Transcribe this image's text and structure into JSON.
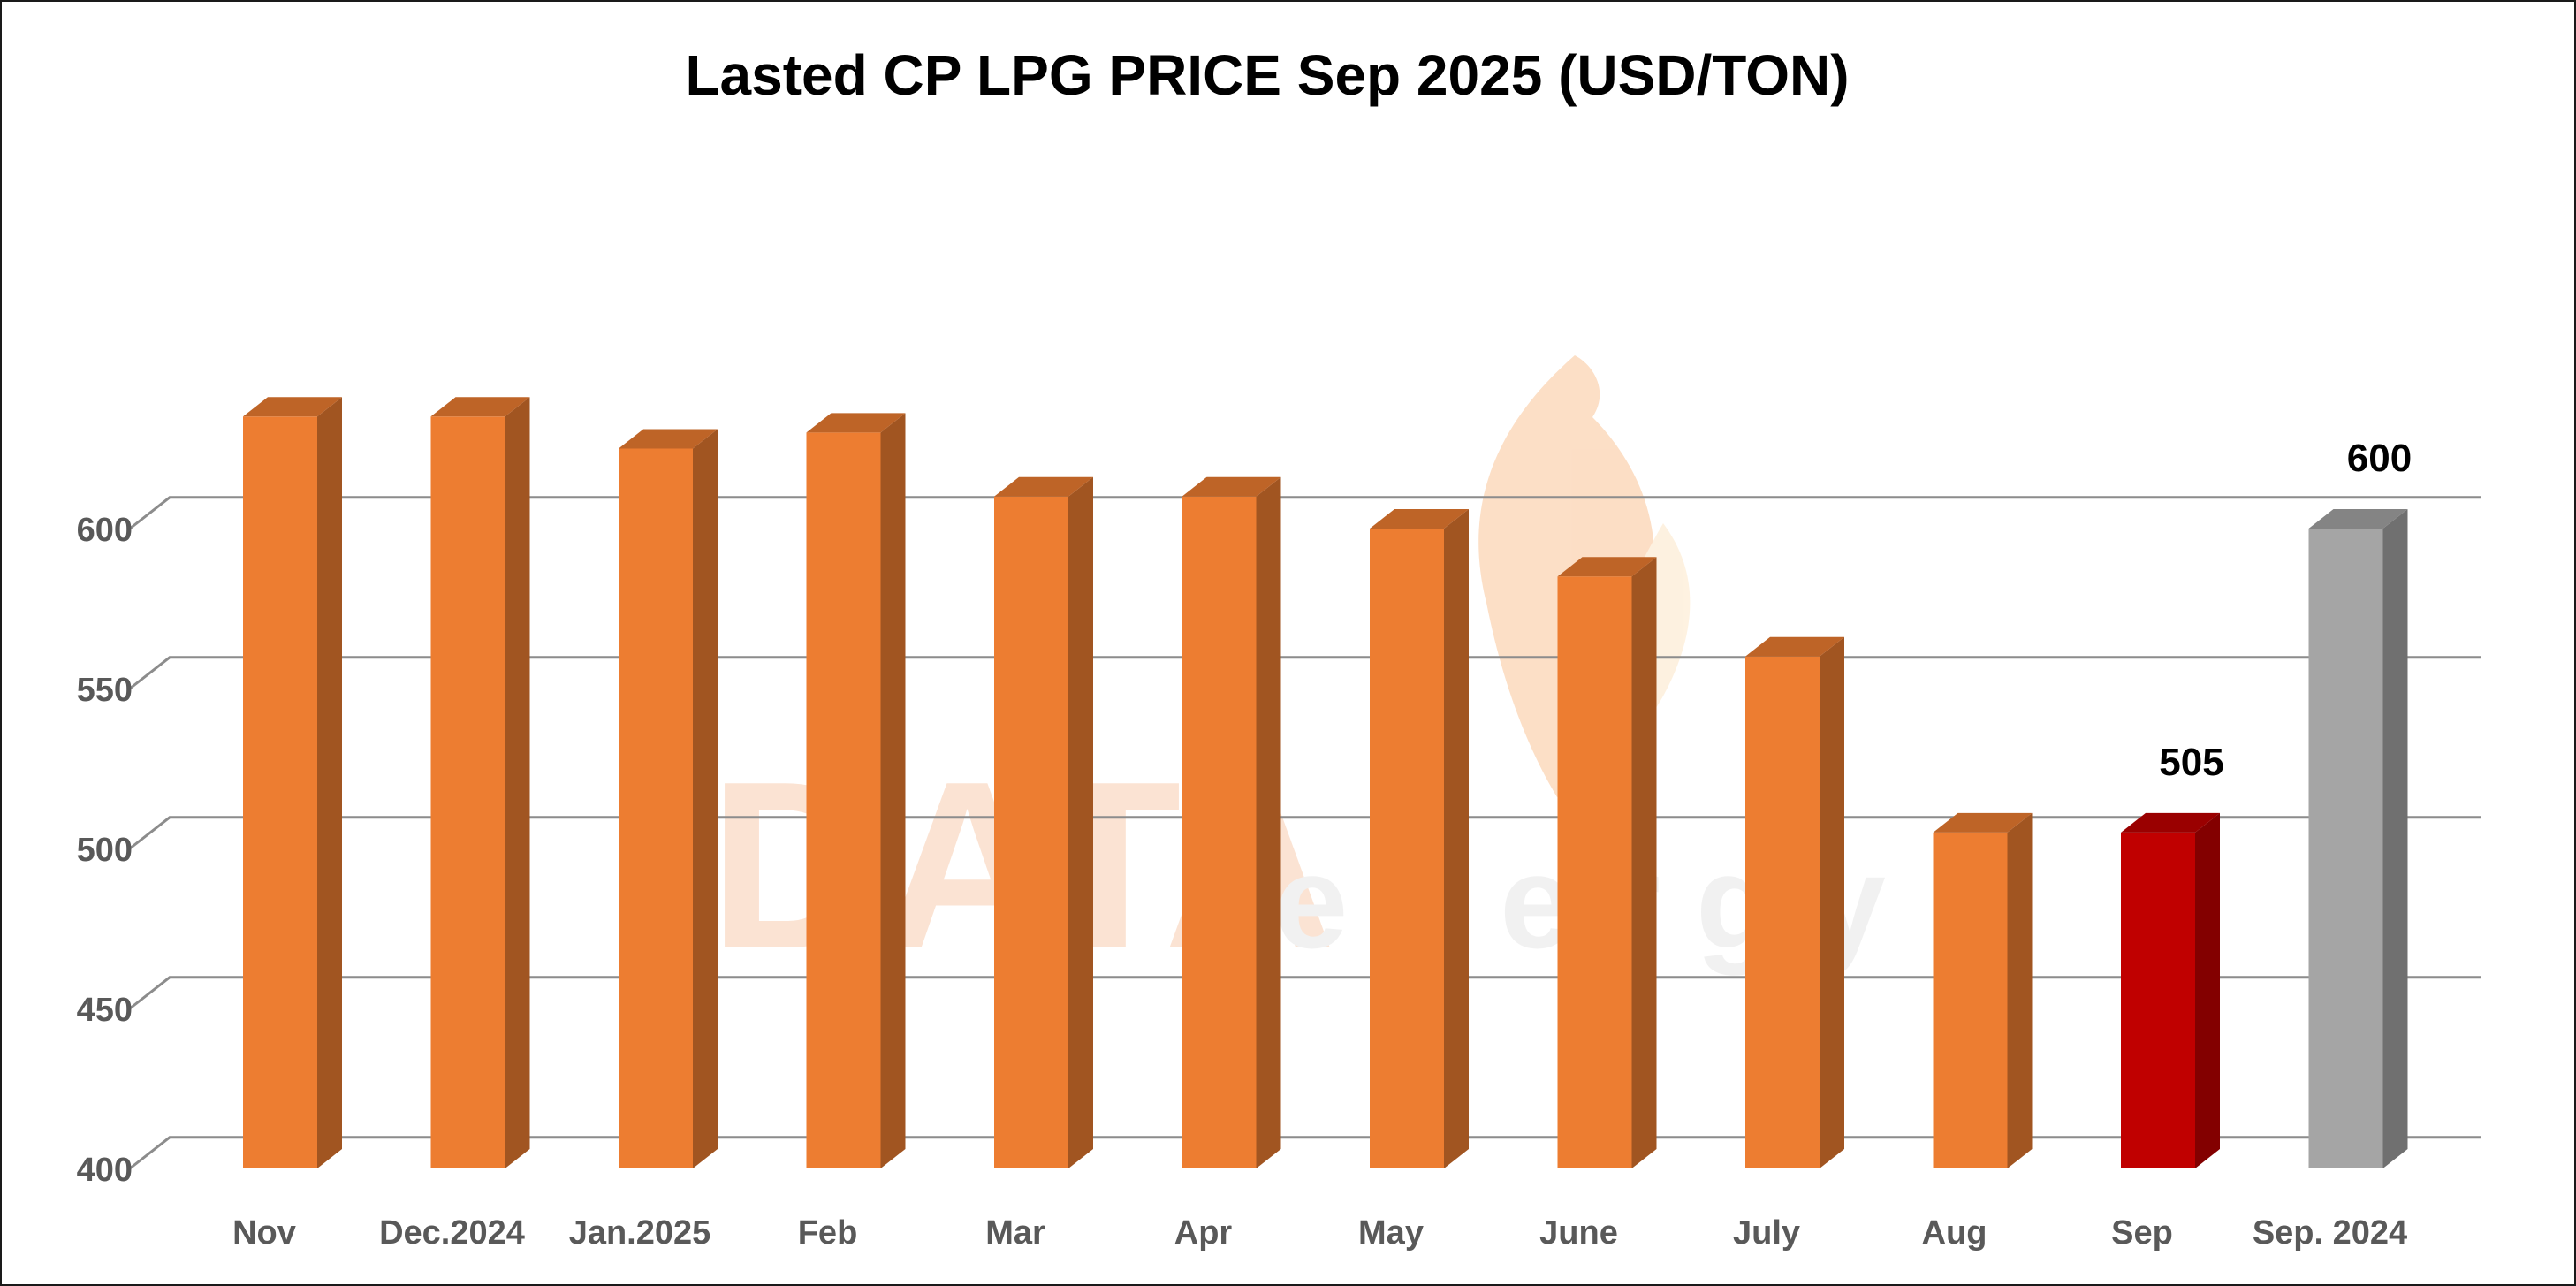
{
  "chart_data": {
    "type": "bar",
    "title": "Lasted CP LPG PRICE Sep 2025 (USD/TON)",
    "categories": [
      "Nov",
      "Dec.2024",
      "Jan.2025",
      "Feb",
      "Mar",
      "Apr",
      "May",
      "June",
      "July",
      "Aug",
      "Sep",
      "Sep. 2024"
    ],
    "values": [
      635,
      635,
      625,
      630,
      610,
      610,
      600,
      585,
      560,
      505,
      505,
      600
    ],
    "bar_colors": [
      "#ED7D31",
      "#ED7D31",
      "#ED7D31",
      "#ED7D31",
      "#ED7D31",
      "#ED7D31",
      "#ED7D31",
      "#ED7D31",
      "#ED7D31",
      "#ED7D31",
      "#C00000",
      "#A5A5A5"
    ],
    "data_labels": {
      "10": "505",
      "11": "600"
    },
    "yticks": [
      "400",
      "450",
      "500",
      "550",
      "600"
    ],
    "ylim": [
      400,
      650
    ],
    "grid": true,
    "style": "3d-column"
  },
  "watermark": {
    "text_main": "DATA",
    "text_sub": "energy"
  }
}
